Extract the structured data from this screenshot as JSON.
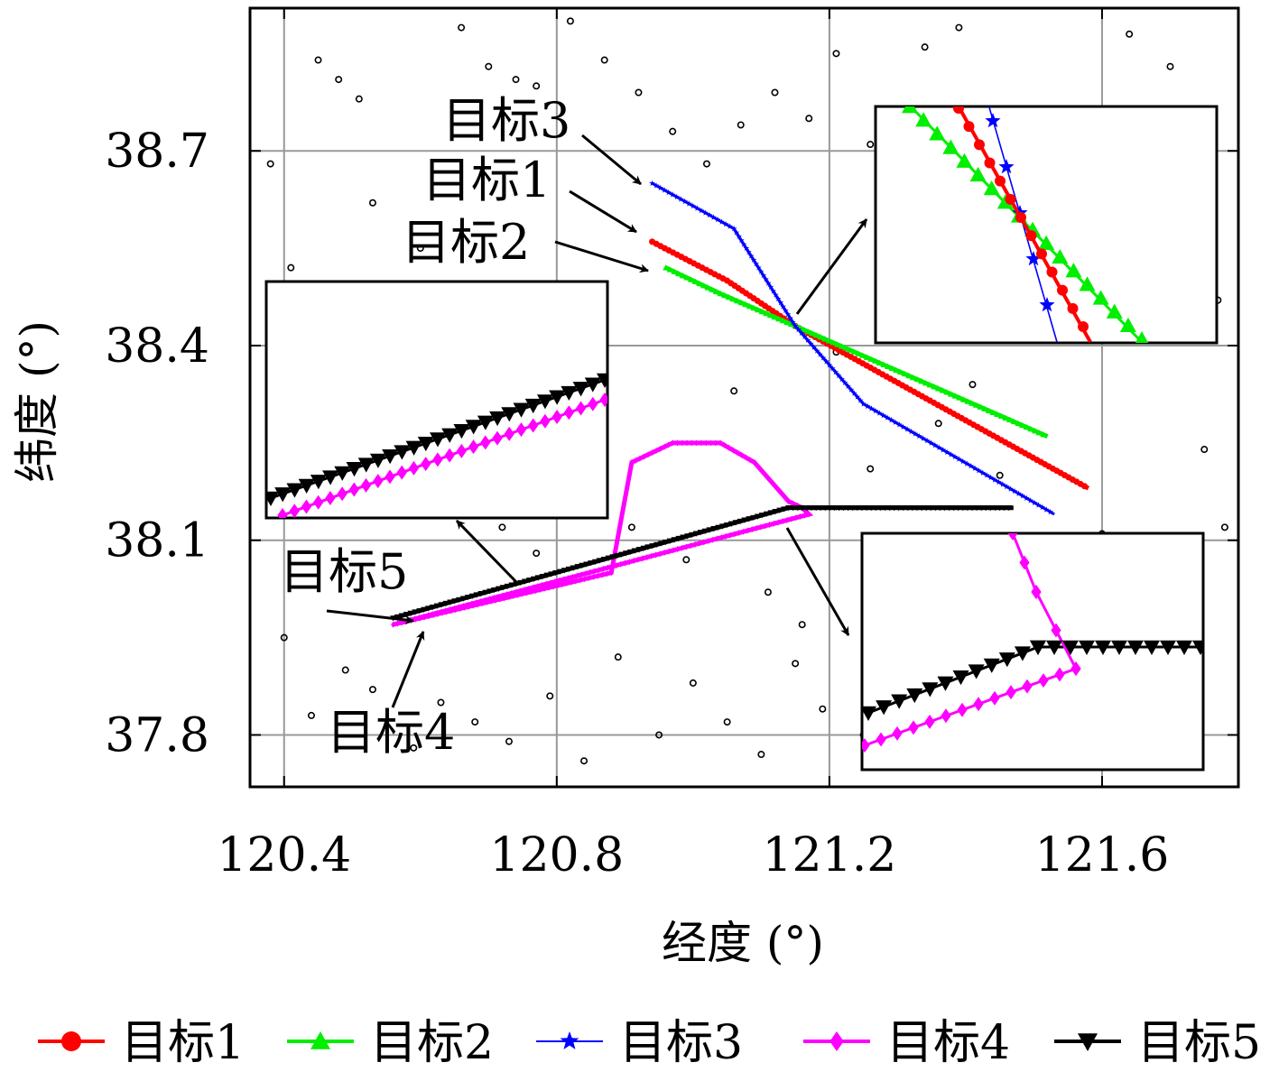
{
  "chart_data": {
    "type": "line",
    "xlabel": "经度 (°)",
    "ylabel": "纬度 (°)",
    "xlim": [
      120.35,
      121.8
    ],
    "ylim": [
      37.72,
      38.92
    ],
    "xticks": [
      120.4,
      120.8,
      121.2,
      121.6
    ],
    "yticks": [
      37.8,
      38.1,
      38.4,
      38.7
    ],
    "xtick_labels": [
      "120.4",
      "120.8",
      "121.2",
      "121.6"
    ],
    "ytick_labels": [
      "37.8",
      "38.1",
      "38.4",
      "38.7"
    ],
    "grid": true,
    "legend_position": "bottom",
    "series": [
      {
        "name": "目标1",
        "color": "#ff0000",
        "marker": "circle",
        "points": [
          [
            120.94,
            38.56
          ],
          [
            121.05,
            38.5
          ],
          [
            121.15,
            38.43
          ],
          [
            121.58,
            38.18
          ]
        ]
      },
      {
        "name": "目标2",
        "color": "#00ee00",
        "marker": "triangle-up",
        "points": [
          [
            120.96,
            38.52
          ],
          [
            121.04,
            38.48
          ],
          [
            121.15,
            38.43
          ],
          [
            121.52,
            38.26
          ]
        ]
      },
      {
        "name": "目标3",
        "color": "#0000ff",
        "marker": "star",
        "points": [
          [
            120.94,
            38.65
          ],
          [
            121.06,
            38.58
          ],
          [
            121.15,
            38.43
          ],
          [
            121.25,
            38.31
          ],
          [
            121.53,
            38.14
          ]
        ]
      },
      {
        "name": "目标4",
        "color": "#ff00ff",
        "marker": "diamond",
        "points": [
          [
            120.56,
            37.97
          ],
          [
            120.88,
            38.05
          ],
          [
            120.91,
            38.22
          ],
          [
            120.97,
            38.25
          ],
          [
            121.04,
            38.25
          ],
          [
            121.09,
            38.22
          ],
          [
            121.14,
            38.16
          ],
          [
            121.16,
            38.15
          ],
          [
            121.17,
            38.14
          ],
          [
            120.56,
            37.97
          ]
        ]
      },
      {
        "name": "目标5",
        "color": "#000000",
        "marker": "triangle-down",
        "points": [
          [
            120.56,
            37.98
          ],
          [
            121.14,
            38.15
          ],
          [
            121.47,
            38.15
          ]
        ]
      }
    ],
    "annotations": [
      {
        "text": "目标3",
        "target": [
          120.94,
          38.65
        ]
      },
      {
        "text": "目标1",
        "target": [
          120.94,
          38.56
        ]
      },
      {
        "text": "目标2",
        "target": [
          120.96,
          38.52
        ]
      },
      {
        "text": "目标5",
        "target": [
          120.56,
          37.98
        ]
      },
      {
        "text": "目标4",
        "target": [
          120.57,
          37.96
        ]
      }
    ],
    "clutter_points": [
      [
        120.45,
        38.84
      ],
      [
        120.48,
        38.81
      ],
      [
        120.51,
        38.78
      ],
      [
        120.53,
        38.62
      ],
      [
        120.6,
        38.55
      ],
      [
        120.66,
        38.89
      ],
      [
        120.7,
        38.83
      ],
      [
        120.74,
        38.81
      ],
      [
        120.77,
        38.8
      ],
      [
        120.82,
        38.9
      ],
      [
        120.87,
        38.84
      ],
      [
        120.92,
        38.79
      ],
      [
        120.97,
        38.73
      ],
      [
        121.02,
        38.68
      ],
      [
        121.07,
        38.74
      ],
      [
        121.12,
        38.79
      ],
      [
        121.17,
        38.75
      ],
      [
        121.21,
        38.85
      ],
      [
        121.26,
        38.71
      ],
      [
        121.3,
        38.63
      ],
      [
        121.34,
        38.86
      ],
      [
        121.39,
        38.89
      ],
      [
        121.43,
        38.74
      ],
      [
        121.48,
        38.68
      ],
      [
        121.53,
        38.58
      ],
      [
        121.59,
        38.61
      ],
      [
        121.64,
        38.88
      ],
      [
        121.7,
        38.83
      ],
      [
        121.74,
        38.75
      ],
      [
        121.77,
        38.47
      ],
      [
        120.38,
        38.68
      ],
      [
        120.41,
        38.52
      ],
      [
        120.48,
        38.4
      ],
      [
        120.52,
        38.45
      ],
      [
        120.58,
        38.37
      ],
      [
        120.62,
        38.29
      ],
      [
        120.67,
        38.2
      ],
      [
        120.72,
        38.12
      ],
      [
        120.77,
        38.08
      ],
      [
        120.81,
        38.19
      ],
      [
        120.86,
        38.27
      ],
      [
        120.91,
        38.12
      ],
      [
        120.99,
        38.07
      ],
      [
        121.06,
        38.33
      ],
      [
        121.11,
        38.02
      ],
      [
        121.16,
        37.97
      ],
      [
        121.21,
        38.39
      ],
      [
        121.26,
        38.21
      ],
      [
        121.31,
        38.09
      ],
      [
        121.36,
        38.28
      ],
      [
        121.41,
        38.34
      ],
      [
        121.45,
        38.2
      ],
      [
        121.5,
        38.06
      ],
      [
        121.55,
        37.93
      ],
      [
        121.6,
        38.11
      ],
      [
        121.65,
        38.03
      ],
      [
        121.7,
        37.95
      ],
      [
        121.75,
        38.24
      ],
      [
        121.78,
        38.12
      ],
      [
        120.4,
        37.95
      ],
      [
        120.44,
        37.83
      ],
      [
        120.49,
        37.9
      ],
      [
        120.53,
        37.87
      ],
      [
        120.59,
        37.78
      ],
      [
        120.63,
        37.85
      ],
      [
        120.68,
        37.82
      ],
      [
        120.73,
        37.79
      ],
      [
        120.79,
        37.86
      ],
      [
        120.84,
        37.76
      ],
      [
        120.89,
        37.92
      ],
      [
        120.95,
        37.8
      ],
      [
        121.0,
        37.88
      ],
      [
        121.05,
        37.82
      ],
      [
        121.1,
        37.77
      ],
      [
        121.15,
        37.91
      ],
      [
        121.19,
        37.84
      ],
      [
        121.25,
        37.8
      ],
      [
        121.3,
        37.94
      ],
      [
        121.35,
        37.86
      ],
      [
        121.42,
        37.79
      ],
      [
        121.47,
        37.89
      ],
      [
        121.52,
        37.83
      ],
      [
        121.57,
        37.78
      ],
      [
        121.63,
        37.86
      ],
      [
        121.68,
        37.92
      ],
      [
        121.73,
        37.8
      ]
    ]
  },
  "insets": [
    {
      "label": "inset-upper-right",
      "note": "zoom of 目标1/2/3 crossing"
    },
    {
      "label": "inset-left",
      "note": "zoom of 目标4/5 start"
    },
    {
      "label": "inset-lower-right",
      "note": "zoom of 目标4/5 turn"
    }
  ]
}
